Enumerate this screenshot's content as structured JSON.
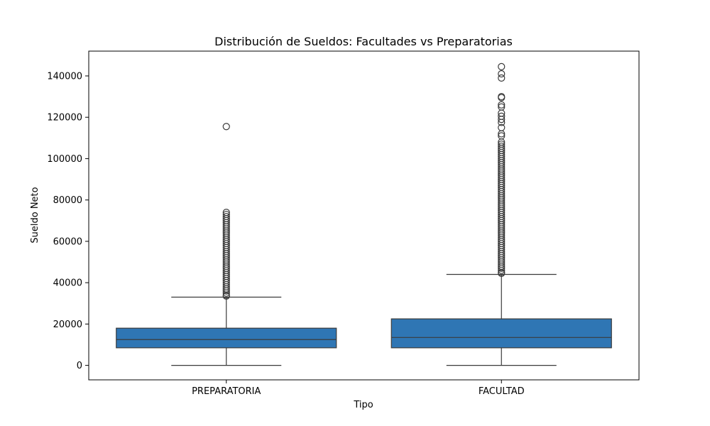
{
  "chart_data": {
    "type": "boxplot",
    "title": "Distribución de Sueldos: Facultades vs Preparatorias",
    "xlabel": "Tipo",
    "ylabel": "Sueldo Neto",
    "categories": [
      "PREPARATORIA",
      "FACULTAD"
    ],
    "ylim": [
      -7000,
      152000
    ],
    "yticks": [
      0,
      20000,
      40000,
      60000,
      80000,
      100000,
      120000,
      140000
    ],
    "box_color": "#2f76b4",
    "line_color": "#3b3b3b",
    "grid": false,
    "boxes": [
      {
        "category": "PREPARATORIA",
        "whisker_low": 0,
        "q1": 8500,
        "median": 12500,
        "q3": 18000,
        "whisker_high": 33000,
        "outliers": [
          115500,
          74000,
          73000,
          72000,
          71000,
          70000,
          69000,
          68000,
          67000,
          66000,
          65000,
          64000,
          63000,
          62000,
          61000,
          60000,
          59000,
          58000,
          57000,
          56000,
          55000,
          54000,
          53000,
          52000,
          51000,
          50000,
          49000,
          48000,
          47000,
          46000,
          45000,
          44000,
          43000,
          42000,
          41000,
          40000,
          39000,
          38000,
          37000,
          36000,
          35000,
          34000,
          33500
        ]
      },
      {
        "category": "FACULTAD",
        "whisker_low": 0,
        "q1": 8500,
        "median": 13500,
        "q3": 22500,
        "whisker_high": 44000,
        "outliers": [
          144500,
          141000,
          139000,
          130000,
          129500,
          126000,
          125000,
          122000,
          120500,
          119000,
          117500,
          115000,
          112000,
          111000,
          108000,
          107000,
          106000,
          105000,
          104000,
          103000,
          102000,
          101000,
          100000,
          99000,
          98000,
          97000,
          96000,
          95000,
          94000,
          93000,
          92000,
          91000,
          90000,
          89000,
          88000,
          87000,
          86000,
          85000,
          84000,
          83000,
          82000,
          81000,
          80000,
          79000,
          78000,
          77000,
          76000,
          75000,
          74000,
          73000,
          72000,
          71000,
          70000,
          69000,
          68000,
          67000,
          66000,
          65000,
          64000,
          63000,
          62000,
          61000,
          60000,
          59000,
          58000,
          57000,
          56000,
          55000,
          54000,
          53000,
          52000,
          51000,
          50000,
          49000,
          48000,
          47000,
          46000,
          45000,
          44500
        ]
      }
    ]
  }
}
